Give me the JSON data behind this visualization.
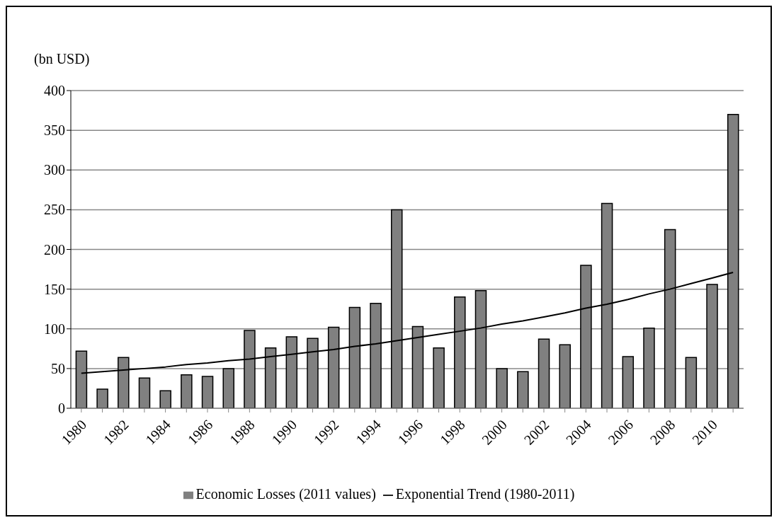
{
  "chart_data": {
    "type": "bar",
    "ylabel": "(bn USD)",
    "categories": [
      "1980",
      null,
      "1982",
      null,
      "1984",
      null,
      "1986",
      null,
      "1988",
      null,
      "1990",
      null,
      "1992",
      null,
      "1994",
      null,
      "1996",
      null,
      "1998",
      null,
      "2000",
      null,
      "2002",
      null,
      "2004",
      null,
      "2006",
      null,
      "2008",
      null,
      "2010",
      null
    ],
    "series": [
      {
        "name": "Economic Losses (2011 values)",
        "color": "#808080",
        "values": [
          72,
          24,
          64,
          38,
          22,
          42,
          40,
          50,
          98,
          76,
          90,
          88,
          102,
          127,
          132,
          250,
          103,
          76,
          140,
          148,
          50,
          46,
          87,
          80,
          180,
          258,
          65,
          101,
          225,
          64,
          156,
          370
        ]
      },
      {
        "name": "Exponential Trend (1980-2011)",
        "type": "line",
        "color": "#000000",
        "values": [
          44,
          46,
          48,
          50,
          52,
          55,
          57,
          60,
          62,
          65,
          68,
          71,
          74,
          78,
          81,
          85,
          89,
          93,
          97,
          101,
          106,
          110,
          115,
          120,
          126,
          131,
          137,
          144,
          150,
          157,
          164,
          171
        ]
      }
    ],
    "ylim": [
      0,
      400
    ],
    "yticks": [
      0,
      50,
      100,
      150,
      200,
      250,
      300,
      350,
      400
    ],
    "grid": "y",
    "legend": "bottom",
    "marker": "none",
    "line_style": "solid"
  }
}
